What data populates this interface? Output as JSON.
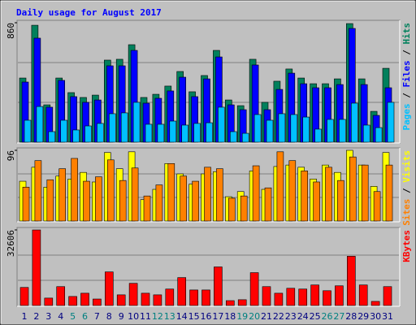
{
  "chart_data": [
    {
      "type": "bar",
      "title": "Daily usage for August 2017",
      "categories": [
        "1",
        "2",
        "3",
        "4",
        "5",
        "6",
        "7",
        "8",
        "9",
        "10",
        "11",
        "12",
        "13",
        "14",
        "15",
        "16",
        "17",
        "18",
        "19",
        "20",
        "21",
        "22",
        "23",
        "24",
        "25",
        "26",
        "27",
        "28",
        "29",
        "30",
        "31"
      ],
      "ylim": [
        0,
        860
      ],
      "yticks": [
        860
      ],
      "legend_separator": " / ",
      "series": [
        {
          "name": "Hits",
          "color": "#00805C",
          "values": [
            462,
            842,
            269,
            462,
            357,
            322,
            339,
            591,
            597,
            702,
            322,
            345,
            404,
            509,
            363,
            480,
            661,
            304,
            263,
            597,
            287,
            439,
            527,
            462,
            421,
            421,
            456,
            854,
            456,
            222,
            532
          ]
        },
        {
          "name": "Files",
          "color": "#0000FF",
          "values": [
            433,
            749,
            252,
            445,
            328,
            287,
            304,
            550,
            550,
            661,
            281,
            316,
            369,
            468,
            328,
            456,
            614,
            269,
            234,
            556,
            234,
            380,
            497,
            421,
            392,
            392,
            415,
            819,
            415,
            193,
            392
          ]
        },
        {
          "name": "Pages",
          "color": "#00C0FF",
          "values": [
            158,
            257,
            76,
            158,
            88,
            117,
            135,
            205,
            211,
            287,
            129,
            129,
            152,
            123,
            135,
            140,
            252,
            76,
            64,
            199,
            158,
            205,
            199,
            181,
            94,
            164,
            164,
            281,
            123,
            105,
            287
          ]
        }
      ]
    },
    {
      "type": "bar",
      "categories": [
        "1",
        "2",
        "3",
        "4",
        "5",
        "6",
        "7",
        "8",
        "9",
        "10",
        "11",
        "12",
        "13",
        "14",
        "15",
        "16",
        "17",
        "18",
        "19",
        "20",
        "21",
        "22",
        "23",
        "24",
        "25",
        "26",
        "27",
        "28",
        "29",
        "30",
        "31"
      ],
      "ylim": [
        0,
        96
      ],
      "yticks": [
        96
      ],
      "legend_separator": " / ",
      "series": [
        {
          "name": "Visits",
          "color": "#FFFF00",
          "values": [
            54,
            73,
            46,
            61,
            57,
            66,
            53,
            93,
            71,
            94,
            29,
            43,
            78,
            64,
            50,
            64,
            67,
            33,
            40,
            68,
            43,
            74,
            76,
            73,
            57,
            76,
            66,
            96,
            76,
            47,
            93
          ]
        },
        {
          "name": "Sites",
          "color": "#FF8000",
          "values": [
            46,
            82,
            56,
            71,
            85,
            54,
            60,
            83,
            55,
            72,
            34,
            49,
            78,
            61,
            54,
            73,
            71,
            31,
            34,
            75,
            45,
            94,
            82,
            68,
            53,
            73,
            55,
            87,
            76,
            40,
            76
          ]
        }
      ]
    },
    {
      "type": "bar",
      "categories": [
        "1",
        "2",
        "3",
        "4",
        "5",
        "6",
        "7",
        "8",
        "9",
        "10",
        "11",
        "12",
        "13",
        "14",
        "15",
        "16",
        "17",
        "18",
        "19",
        "20",
        "21",
        "22",
        "23",
        "24",
        "25",
        "26",
        "27",
        "28",
        "29",
        "30",
        "31"
      ],
      "label_colors": [
        "#000080",
        "#000080",
        "#000080",
        "#000080",
        "#008080",
        "#008080",
        "#000080",
        "#000080",
        "#000080",
        "#000080",
        "#000080",
        "#008080",
        "#008080",
        "#000080",
        "#000080",
        "#000080",
        "#000080",
        "#000080",
        "#008080",
        "#008080",
        "#000080",
        "#000080",
        "#000080",
        "#000080",
        "#000080",
        "#008080",
        "#008080",
        "#000080",
        "#000080",
        "#000080",
        "#000080"
      ],
      "ylim": [
        0,
        32606
      ],
      "yticks": [
        32606
      ],
      "legend_separator": " / ",
      "series": [
        {
          "name": "KBytes",
          "color": "#FF0000",
          "values": [
            7800,
            32606,
            3200,
            8150,
            3900,
            5300,
            2800,
            14500,
            4600,
            9570,
            5300,
            4600,
            7100,
            12050,
            6700,
            6700,
            16650,
            2100,
            2500,
            14180,
            8150,
            5300,
            7440,
            7100,
            8860,
            6380,
            8500,
            21260,
            8860,
            1770,
            8150
          ]
        }
      ]
    }
  ]
}
